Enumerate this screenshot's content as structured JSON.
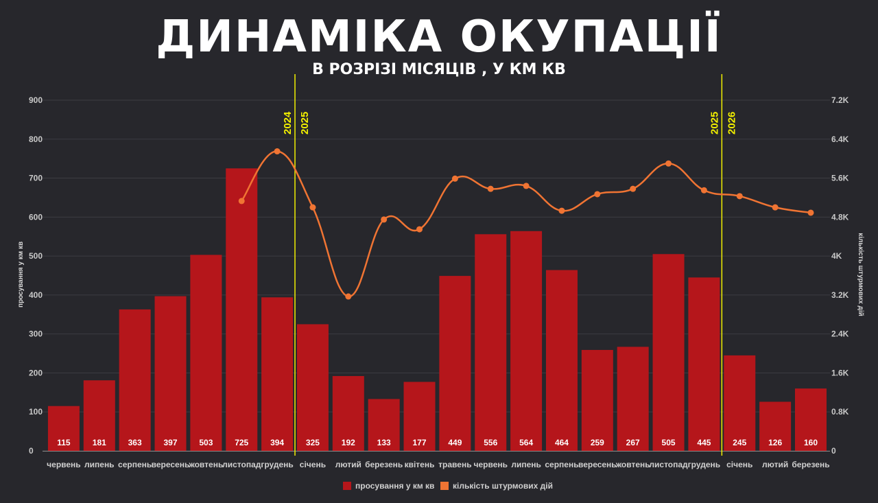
{
  "chart_data": {
    "type": "bar+line",
    "title": "ДИНАМІКА ОКУПАЦІЇ",
    "subtitle": "В РОЗРІЗІ МІСЯЦІВ , У КМ КВ",
    "categories": [
      "червень",
      "липень",
      "серпень",
      "вересень",
      "жовтень",
      "листопад",
      "грудень",
      "січень",
      "лютий",
      "березень",
      "квітень",
      "травень",
      "червень",
      "липень",
      "серпень",
      "вересень",
      "жовтень",
      "листопад",
      "грудень",
      "січень",
      "лютий",
      "березень"
    ],
    "series": [
      {
        "name": "просування у км кв",
        "type": "bar",
        "axis": "left",
        "color": "#b5161b",
        "values": [
          115,
          181,
          363,
          397,
          503,
          725,
          394,
          325,
          192,
          133,
          177,
          449,
          556,
          564,
          464,
          259,
          267,
          505,
          445,
          245,
          126,
          160
        ]
      },
      {
        "name": "кількість штурмових дій",
        "type": "line",
        "axis": "right",
        "color": "#f07433",
        "values": [
          null,
          null,
          null,
          null,
          null,
          5130,
          6150,
          5000,
          3170,
          4750,
          4550,
          5590,
          5380,
          5440,
          4930,
          5270,
          5380,
          5900,
          5350,
          5230,
          5000,
          4890
        ]
      }
    ],
    "ylabel": "просування у км кв",
    "ylim": [
      0,
      900
    ],
    "yticks": [
      "0",
      "100",
      "200",
      "300",
      "400",
      "500",
      "600",
      "700",
      "800",
      "900"
    ],
    "y2label": "кількість штурмових дій",
    "y2lim": [
      0,
      7200
    ],
    "y2ticks": [
      "0",
      "0.8K",
      "1.6K",
      "2.4K",
      "3.2K",
      "4K",
      "4.8K",
      "5.6K",
      "6.4K",
      "7.2K"
    ],
    "year_markers": [
      {
        "after_index": 6,
        "left": "2024",
        "right": "2025"
      },
      {
        "after_index": 18,
        "left": "2025",
        "right": "2026"
      }
    ],
    "marker_color": "#f2f000",
    "grid": true,
    "legend_position": "bottom"
  }
}
